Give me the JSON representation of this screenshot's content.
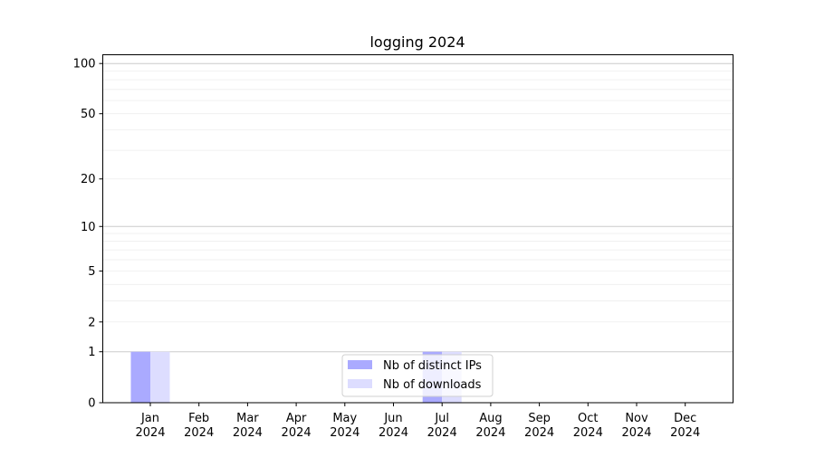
{
  "chart_data": {
    "type": "bar",
    "title": "logging 2024",
    "xlabel": "",
    "ylabel": "",
    "y_scale": "log(1+y)",
    "ylim": [
      0,
      113
    ],
    "yticks": [
      0,
      1,
      2,
      5,
      10,
      20,
      50,
      100
    ],
    "grid": "horizontal, major and minor",
    "legend_position": "lower center",
    "categories": [
      [
        "Jan",
        "2024"
      ],
      [
        "Feb",
        "2024"
      ],
      [
        "Mar",
        "2024"
      ],
      [
        "Apr",
        "2024"
      ],
      [
        "May",
        "2024"
      ],
      [
        "Jun",
        "2024"
      ],
      [
        "Jul",
        "2024"
      ],
      [
        "Aug",
        "2024"
      ],
      [
        "Sep",
        "2024"
      ],
      [
        "Oct",
        "2024"
      ],
      [
        "Nov",
        "2024"
      ],
      [
        "Dec",
        "2024"
      ]
    ],
    "series": [
      {
        "name": "Nb of distinct IPs",
        "color": "#aaaaff",
        "values": [
          1,
          0,
          0,
          0,
          0,
          0,
          1,
          0,
          0,
          0,
          0,
          0
        ]
      },
      {
        "name": "Nb of downloads",
        "color": "#ddddff",
        "values": [
          1,
          0,
          0,
          0,
          0,
          0,
          1,
          0,
          0,
          0,
          0,
          0
        ]
      }
    ]
  }
}
